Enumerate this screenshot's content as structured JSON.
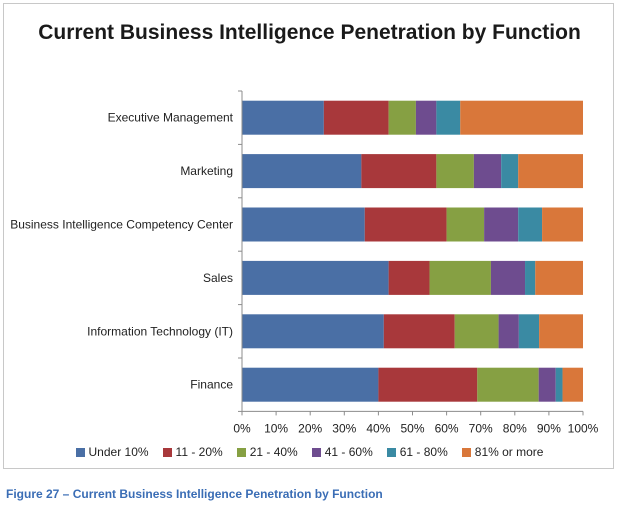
{
  "chart_data": {
    "type": "bar",
    "orientation": "horizontal",
    "stacked": "percent",
    "title": "Current Business Intelligence Penetration by Function",
    "categories": [
      "Executive Management",
      "Marketing",
      "Business Intelligence Competency Center",
      "Sales",
      "Information Technology (IT)",
      "Finance"
    ],
    "series": [
      {
        "name": "Under 10%",
        "color": "#4a6fa5",
        "values": [
          24,
          35,
          36,
          43,
          42,
          40
        ]
      },
      {
        "name": "11 - 20%",
        "color": "#a8383b",
        "values": [
          19,
          22,
          24,
          12,
          21,
          29
        ]
      },
      {
        "name": "21 - 40%",
        "color": "#86a043",
        "values": [
          8,
          11,
          11,
          18,
          13,
          18
        ]
      },
      {
        "name": "41 - 60%",
        "color": "#6e4c8f",
        "values": [
          6,
          8,
          10,
          10,
          6,
          5
        ]
      },
      {
        "name": "61 - 80%",
        "color": "#3a8aa3",
        "values": [
          7,
          5,
          7,
          3,
          6,
          2
        ]
      },
      {
        "name": "81% or more",
        "color": "#d9773a",
        "values": [
          36,
          19,
          12,
          14,
          13,
          6
        ]
      }
    ],
    "xlim": [
      0,
      100
    ],
    "x_ticks": [
      "0%",
      "10%",
      "20%",
      "30%",
      "40%",
      "50%",
      "60%",
      "70%",
      "80%",
      "90%",
      "100%"
    ],
    "grid": false,
    "legend_position": "bottom"
  },
  "caption": "Figure 27 – Current Business Intelligence Penetration by Function"
}
